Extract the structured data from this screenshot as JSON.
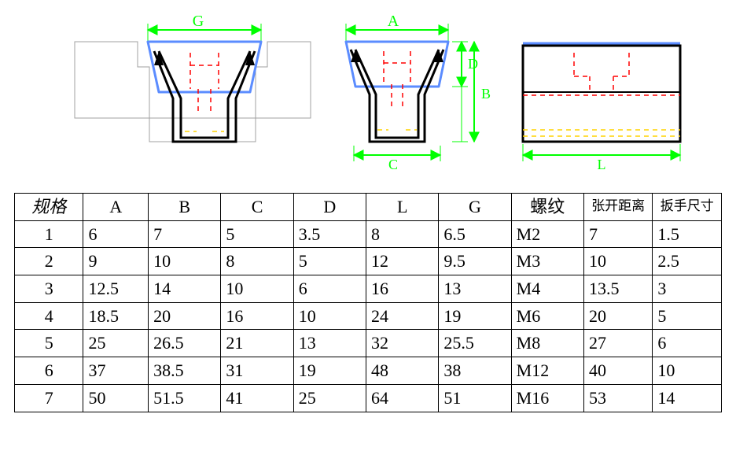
{
  "diagram": {
    "dim_labels": {
      "G": "G",
      "A": "A",
      "B": "B",
      "C": "C",
      "D": "D",
      "L": "L"
    },
    "colors": {
      "outline_gray": "#888888",
      "dim_green": "#00ff00",
      "insert_blue": "#5b8cff",
      "hidden_red": "#ff0000",
      "hidden_yellow": "#ffd400",
      "part_black": "#000000"
    },
    "line_widths": {
      "thin": 1,
      "med": 2,
      "thick": 3
    },
    "dash": "6,5"
  },
  "table": {
    "headers": [
      "规格",
      "A",
      "B",
      "C",
      "D",
      "L",
      "G",
      "螺纹",
      "张开距离",
      "扳手尺寸"
    ],
    "col_widths_pct": [
      9,
      8.5,
      9.5,
      9.5,
      9.5,
      9.5,
      9.5,
      9.5,
      9,
      9
    ],
    "rows": [
      [
        "1",
        "6",
        "7",
        "5",
        "3.5",
        "8",
        "6.5",
        "M2",
        "7",
        "1.5"
      ],
      [
        "2",
        "9",
        "10",
        "8",
        "5",
        "12",
        "9.5",
        "M3",
        "10",
        "2.5"
      ],
      [
        "3",
        "12.5",
        "14",
        "10",
        "6",
        "16",
        "13",
        "M4",
        "13.5",
        "3"
      ],
      [
        "4",
        "18.5",
        "20",
        "16",
        "10",
        "24",
        "19",
        "M6",
        "20",
        "5"
      ],
      [
        "5",
        "25",
        "26.5",
        "21",
        "13",
        "32",
        "25.5",
        "M8",
        "27",
        "6"
      ],
      [
        "6",
        "37",
        "38.5",
        "31",
        "19",
        "48",
        "38",
        "M12",
        "40",
        "10"
      ],
      [
        "7",
        "50",
        "51.5",
        "41",
        "25",
        "64",
        "51",
        "M16",
        "53",
        "14"
      ]
    ]
  }
}
